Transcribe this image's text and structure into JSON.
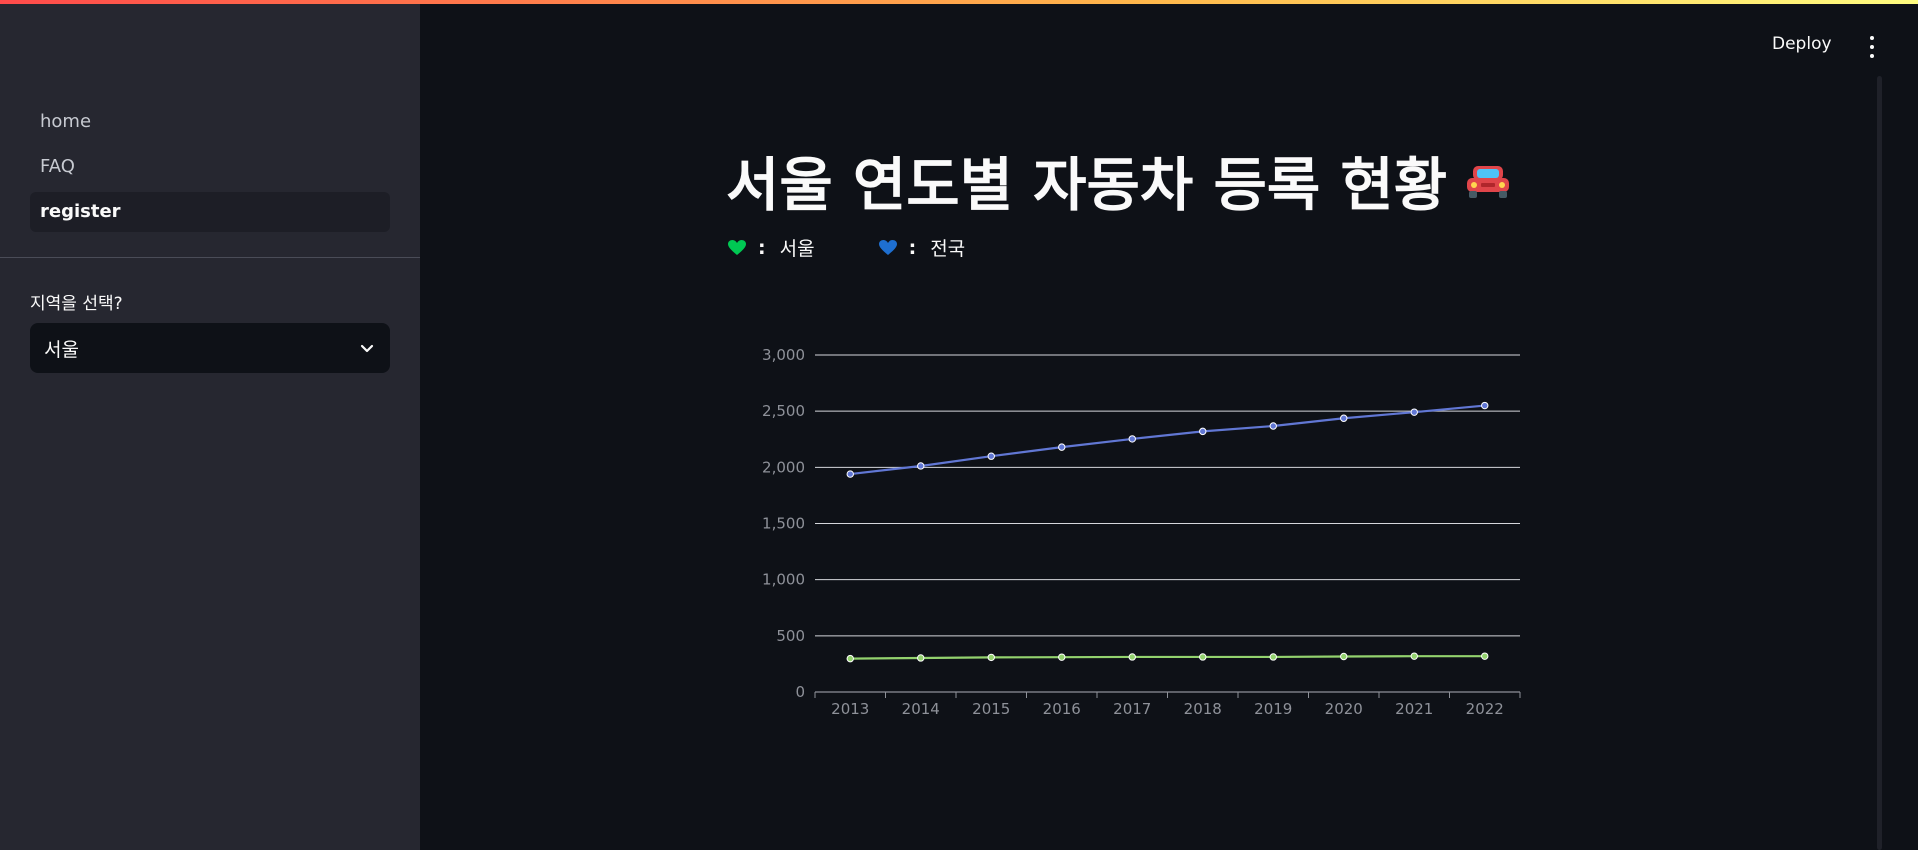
{
  "sidebar": {
    "nav": [
      {
        "label": "home"
      },
      {
        "label": "FAQ"
      },
      {
        "label": "register"
      }
    ],
    "select_label": "지역을 선택?",
    "select_value": "서울"
  },
  "header": {
    "deploy_label": "Deploy"
  },
  "main": {
    "title": "서울 연도별 자동차 등록 현황",
    "legend": [
      {
        "icon": "green-heart-icon",
        "sep": ":",
        "label": "서울",
        "color": "#00c853"
      },
      {
        "icon": "blue-heart-icon",
        "sep": ":",
        "label": "전국",
        "color": "#1e6fd0"
      }
    ]
  },
  "colors": {
    "accent": "#ff4b4b",
    "sidebar_bg": "#262730",
    "main_bg": "#0e1117",
    "national_line": "#6177d4",
    "seoul_line": "#93d26e"
  },
  "chart_data": {
    "type": "line",
    "categories": [
      "2013",
      "2014",
      "2015",
      "2016",
      "2017",
      "2018",
      "2019",
      "2020",
      "2021",
      "2022"
    ],
    "yticks": [
      "0",
      "500",
      "1,000",
      "1,500",
      "2,000",
      "2,500",
      "3,000"
    ],
    "ylim": [
      0,
      3000
    ],
    "grid": true,
    "series": [
      {
        "values": [
          1940,
          2012,
          2099,
          2180,
          2253,
          2320,
          2368,
          2437,
          2491,
          2550
        ],
        "color": "#6177d4"
      },
      {
        "values": [
          297,
          303,
          308,
          310,
          312,
          312,
          312,
          316,
          319,
          319
        ],
        "color": "#93d26e"
      }
    ]
  }
}
